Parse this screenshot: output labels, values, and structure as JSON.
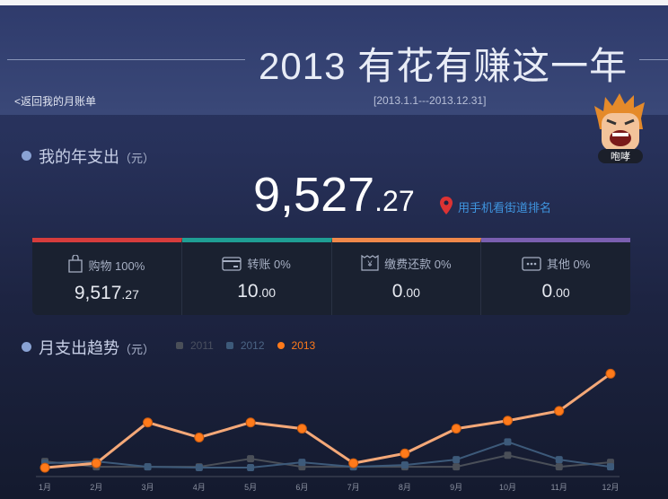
{
  "header": {
    "title": "2013 有花有赚这一年",
    "back_link": "<返回我的月账单",
    "date_range": "[2013.1.1---2013.12.31]",
    "mascot_label": "咆哮"
  },
  "annual": {
    "heading": "我的年支出",
    "unit": "（元）",
    "total_int": "9,527",
    "total_dec": ".27",
    "rank_link": "用手机看街道排名"
  },
  "categories": [
    {
      "label": "购物 100%",
      "int": "9,517",
      "dec": ".27",
      "color": "#d63c3c",
      "icon": "shopping-bag-icon"
    },
    {
      "label": "转账 0%",
      "int": "10",
      "dec": ".00",
      "color": "#1f9e94",
      "icon": "card-icon"
    },
    {
      "label": "缴费还款 0%",
      "int": "0",
      "dec": ".00",
      "color": "#f0884a",
      "icon": "receipt-icon"
    },
    {
      "label": "其他 0%",
      "int": "0",
      "dec": ".00",
      "color": "#7a5fb0",
      "icon": "more-icon"
    }
  ],
  "trend": {
    "heading": "月支出趋势",
    "unit": "（元）"
  },
  "chart_data": {
    "type": "line",
    "categories": [
      "1月",
      "2月",
      "3月",
      "4月",
      "5月",
      "6月",
      "7月",
      "8月",
      "9月",
      "10月",
      "11月",
      "12月"
    ],
    "series": [
      {
        "name": "2011",
        "color": "#4a4f58",
        "values": [
          215,
          107,
          107,
          107,
          269,
          107,
          107,
          107,
          107,
          340,
          107,
          197
        ]
      },
      {
        "name": "2012",
        "color": "#3d5a7a",
        "values": [
          179,
          215,
          107,
          90,
          90,
          197,
          107,
          143,
          251,
          609,
          251,
          107
        ]
      },
      {
        "name": "2013",
        "color": "#ff7a1a",
        "values": [
          89,
          179,
          1001,
          697,
          1001,
          876,
          179,
          375,
          876,
          1037,
          1233,
          1984
        ]
      }
    ],
    "ylim": [
      0,
      2100
    ],
    "grid": false,
    "legend": "top-left"
  }
}
